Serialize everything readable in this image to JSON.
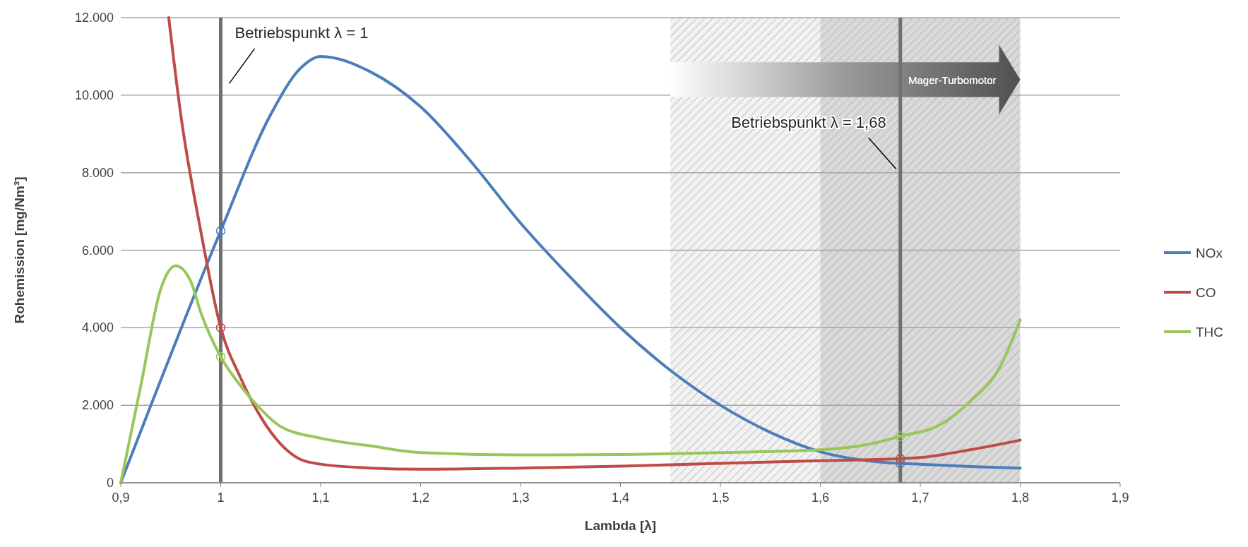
{
  "chart_data": {
    "type": "line",
    "xlabel": "Lambda [λ]",
    "ylabel": "Rohemission [mg/Nm³]",
    "xlim": [
      0.9,
      1.9
    ],
    "xticks": [
      {
        "value": 0.9,
        "label": "0,9"
      },
      {
        "value": 1,
        "label": "1"
      },
      {
        "value": 1.1,
        "label": "1,1"
      },
      {
        "value": 1.2,
        "label": "1,2"
      },
      {
        "value": 1.3,
        "label": "1,3"
      },
      {
        "value": 1.4,
        "label": "1,4"
      },
      {
        "value": 1.5,
        "label": "1,5"
      },
      {
        "value": 1.6,
        "label": "1,6"
      },
      {
        "value": 1.7,
        "label": "1,7"
      },
      {
        "value": 1.8,
        "label": "1,8"
      },
      {
        "value": 1.9,
        "label": "1,9"
      }
    ],
    "ylim": [
      0,
      12000
    ],
    "yticks": [
      0,
      {
        "value": 2000,
        "label": "2.000"
      },
      {
        "value": 4000,
        "label": "4.000"
      },
      {
        "value": 6000,
        "label": "6.000"
      },
      {
        "value": 8000,
        "label": "8.000"
      },
      {
        "value": 10000,
        "label": "10.000"
      },
      {
        "value": 12000,
        "label": "12.000"
      }
    ],
    "grid": "y",
    "legend": "right",
    "line_style": "solid",
    "series": [
      {
        "name": "NOx",
        "color": "#4a7ebb",
        "x": [
          0.9,
          1.0,
          1.05,
          1.08,
          1.1,
          1.15,
          1.2,
          1.25,
          1.3,
          1.35,
          1.4,
          1.45,
          1.5,
          1.55,
          1.6,
          1.65,
          1.68,
          1.7,
          1.75,
          1.8
        ],
        "values": [
          0,
          6500,
          9500,
          10700,
          11000,
          10600,
          9700,
          8300,
          6700,
          5300,
          4000,
          2900,
          2000,
          1300,
          800,
          560,
          500,
          480,
          420,
          380
        ]
      },
      {
        "name": "CO",
        "color": "#be4b48",
        "x": [
          0.948,
          0.96,
          0.98,
          1.0,
          1.02,
          1.04,
          1.06,
          1.08,
          1.1,
          1.15,
          1.2,
          1.3,
          1.4,
          1.5,
          1.6,
          1.68,
          1.7,
          1.75,
          1.8
        ],
        "values": [
          12000,
          9500,
          6500,
          4000,
          2700,
          1700,
          1000,
          600,
          480,
          380,
          350,
          380,
          430,
          500,
          570,
          620,
          650,
          850,
          1100
        ]
      },
      {
        "name": "THC",
        "color": "#98c65a",
        "x": [
          0.9,
          0.92,
          0.94,
          0.955,
          0.97,
          0.98,
          1.0,
          1.02,
          1.04,
          1.06,
          1.1,
          1.15,
          1.2,
          1.3,
          1.4,
          1.5,
          1.6,
          1.65,
          1.68,
          1.72,
          1.75,
          1.78,
          1.8
        ],
        "values": [
          0,
          2500,
          5000,
          5600,
          5200,
          4400,
          3250,
          2500,
          1900,
          1450,
          1150,
          950,
          780,
          720,
          730,
          780,
          850,
          1000,
          1200,
          1500,
          2100,
          3000,
          4200
        ]
      },
      {
        "type": "scatter",
        "marker": "circle",
        "color": "#4a7ebb",
        "x": [
          1.0,
          1.68
        ],
        "values": [
          6500,
          500
        ]
      },
      {
        "type": "scatter",
        "marker": "circle",
        "color": "#be4b48",
        "x": [
          1.0,
          1.68
        ],
        "values": [
          4000,
          620
        ]
      },
      {
        "type": "scatter",
        "marker": "circle",
        "color": "#98c65a",
        "x": [
          1.0,
          1.68
        ],
        "values": [
          3250,
          1200
        ]
      }
    ],
    "ref_lines": [
      {
        "axis": "x",
        "value": 1,
        "label": "Betriebspunkt λ = 1",
        "color": "#707070"
      },
      {
        "axis": "x",
        "value": 1.68,
        "label": "Betriebspunkt λ = 1,68",
        "color": "#707070"
      }
    ],
    "bands": [
      {
        "axis": "x",
        "from": 1.45,
        "to": 1.6,
        "color": "#f2f2f2"
      },
      {
        "axis": "x",
        "from": 1.6,
        "to": 1.8,
        "color": "#d9d9d9"
      }
    ],
    "annotations": [
      "Mager-Turbomotor"
    ]
  }
}
